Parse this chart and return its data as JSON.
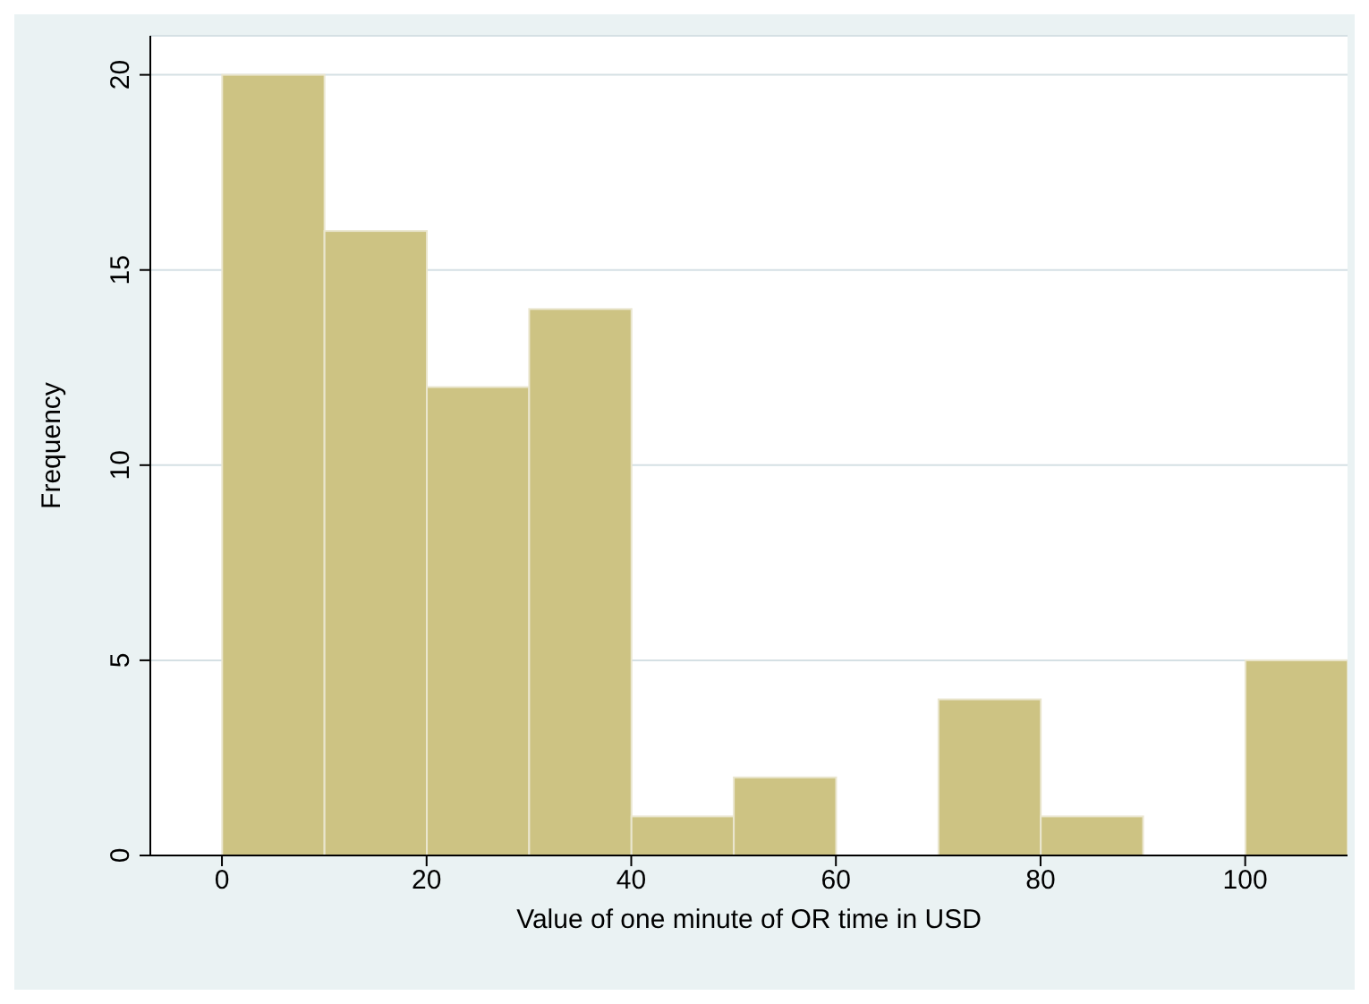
{
  "chart_data": {
    "type": "histogram",
    "xlabel": "Value of one minute of OR time in USD",
    "ylabel": "Frequency",
    "bins": [
      0,
      10,
      20,
      30,
      40,
      50,
      60,
      70,
      80,
      90,
      100,
      110
    ],
    "values": [
      20,
      16,
      12,
      14,
      1,
      2,
      0,
      4,
      1,
      0,
      5
    ],
    "color": "#cdc383",
    "xlim": [
      -7,
      110
    ],
    "ylim": [
      0,
      21
    ],
    "xticks": [
      0,
      20,
      40,
      60,
      80,
      100
    ],
    "yticks": [
      0,
      5,
      10,
      15,
      20
    ],
    "grid": "y"
  }
}
